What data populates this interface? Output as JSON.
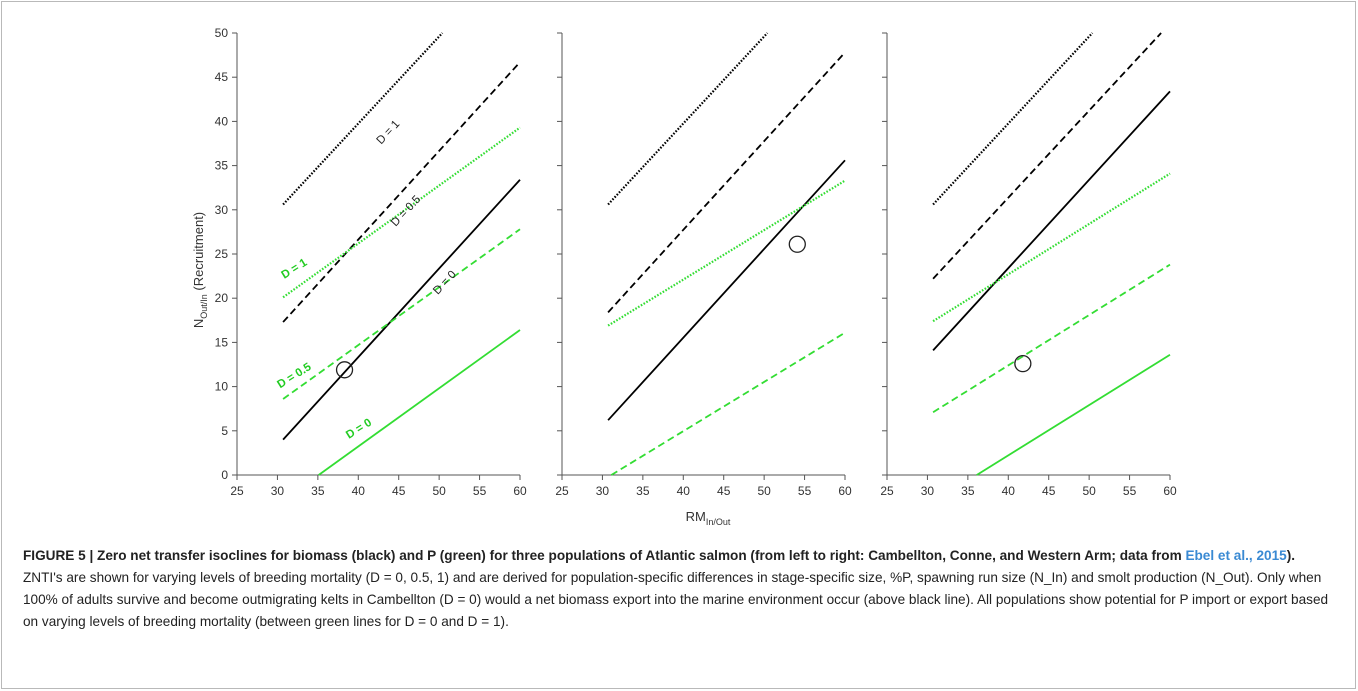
{
  "chart_data": [
    {
      "type": "line",
      "panel": "Cambellton",
      "xlim": [
        25,
        60
      ],
      "ylim": [
        0,
        50
      ],
      "x_ticks": [
        25,
        30,
        35,
        40,
        45,
        50,
        55,
        60
      ],
      "y_ticks": [
        0,
        5,
        10,
        15,
        20,
        25,
        30,
        35,
        40,
        45,
        50
      ],
      "ylabel": "N_Out/In (Recruitment)",
      "series": [
        {
          "name": "D = 1",
          "nutrient": "biomass",
          "color": "#000000",
          "style": "dotted",
          "x": [
            30.7,
            50.4
          ],
          "y": [
            30.6,
            50
          ]
        },
        {
          "name": "D = 0.5",
          "nutrient": "biomass",
          "color": "#000000",
          "style": "dashed",
          "x": [
            30.7,
            60
          ],
          "y": [
            17.3,
            46.7
          ]
        },
        {
          "name": "D = 0",
          "nutrient": "biomass",
          "color": "#000000",
          "style": "solid",
          "x": [
            30.7,
            60
          ],
          "y": [
            4,
            33.4
          ]
        },
        {
          "name": "D = 1",
          "nutrient": "P",
          "color": "#33dd33",
          "style": "dotted",
          "x": [
            30.7,
            60
          ],
          "y": [
            20.1,
            39.3
          ]
        },
        {
          "name": "D = 0.5",
          "nutrient": "P",
          "color": "#33dd33",
          "style": "dashed",
          "x": [
            30.7,
            60
          ],
          "y": [
            8.6,
            27.8
          ]
        },
        {
          "name": "D = 0",
          "nutrient": "P",
          "color": "#33dd33",
          "style": "solid",
          "x": [
            35.1,
            60
          ],
          "y": [
            0,
            16.4
          ]
        }
      ],
      "point": {
        "x": 38.3,
        "y": 11.9
      },
      "annotations": [
        "D = 1",
        "D = 0.5",
        "D = 0",
        "D = 1",
        "D = 0.5",
        "D = 0"
      ]
    },
    {
      "type": "line",
      "panel": "Conne",
      "xlim": [
        25,
        60
      ],
      "ylim": [
        0,
        50
      ],
      "x_ticks": [
        25,
        30,
        35,
        40,
        45,
        50,
        55,
        60
      ],
      "series": [
        {
          "nutrient": "biomass",
          "color": "#000000",
          "style": "dotted",
          "x": [
            30.7,
            50.4
          ],
          "y": [
            30.6,
            50
          ]
        },
        {
          "nutrient": "biomass",
          "color": "#000000",
          "style": "dashed",
          "x": [
            30.7,
            60
          ],
          "y": [
            18.4,
            47.8
          ]
        },
        {
          "nutrient": "biomass",
          "color": "#000000",
          "style": "solid",
          "x": [
            30.7,
            60
          ],
          "y": [
            6.2,
            35.6
          ]
        },
        {
          "nutrient": "P",
          "color": "#33dd33",
          "style": "dotted",
          "x": [
            30.7,
            60
          ],
          "y": [
            16.9,
            33.3
          ]
        },
        {
          "nutrient": "P",
          "color": "#33dd33",
          "style": "dashed",
          "x": [
            31.1,
            60
          ],
          "y": [
            0,
            16.1
          ]
        }
      ],
      "point": {
        "x": 54.1,
        "y": 26.1
      }
    },
    {
      "type": "line",
      "panel": "Western Arm",
      "xlim": [
        25,
        60
      ],
      "ylim": [
        0,
        50
      ],
      "x_ticks": [
        25,
        30,
        35,
        40,
        45,
        50,
        55,
        60
      ],
      "series": [
        {
          "nutrient": "biomass",
          "color": "#000000",
          "style": "dotted",
          "x": [
            30.7,
            50.4
          ],
          "y": [
            30.6,
            50
          ]
        },
        {
          "nutrient": "biomass",
          "color": "#000000",
          "style": "dashed",
          "x": [
            30.7,
            58.9
          ],
          "y": [
            22.2,
            50
          ]
        },
        {
          "nutrient": "biomass",
          "color": "#000000",
          "style": "solid",
          "x": [
            30.7,
            60
          ],
          "y": [
            14.1,
            43.4
          ]
        },
        {
          "nutrient": "P",
          "color": "#33dd33",
          "style": "dotted",
          "x": [
            30.7,
            60
          ],
          "y": [
            17.4,
            34.1
          ]
        },
        {
          "nutrient": "P",
          "color": "#33dd33",
          "style": "dashed",
          "x": [
            30.7,
            60
          ],
          "y": [
            7.1,
            23.8
          ]
        },
        {
          "nutrient": "P",
          "color": "#33dd33",
          "style": "solid",
          "x": [
            36.1,
            60
          ],
          "y": [
            0,
            13.6
          ]
        }
      ],
      "point": {
        "x": 41.8,
        "y": 12.6
      }
    }
  ],
  "xlabel": "RM_In/Out",
  "caption": {
    "title": "FIGURE 5 | Zero net transfer isoclines for biomass (black) and P (green) for three populations of Atlantic salmon (from left to right: Cambellton, Conne, and Western Arm; data from ",
    "ref": "Ebel et al., 2015",
    "title_end": ").",
    "body": " ZNTI's are shown for varying levels of breeding mortality (D = 0, 0.5, 1) and are derived for population-specific differences in stage-specific size, %P, spawning run size (N_In) and smolt production (N_Out). Only when 100% of adults survive and become outmigrating kelts in Cambellton (D = 0) would a net biomass export into the marine environment occur (above black line). All populations show potential for P import or export based on varying levels of breeding mortality (between green lines for D = 0 and D = 1)."
  }
}
